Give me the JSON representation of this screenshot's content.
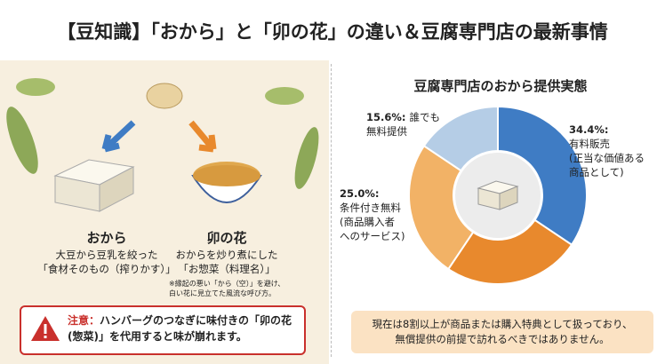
{
  "title": "【豆知識】「おから」と「卯の花」の違い＆豆腐専門店の最新事情",
  "left": {
    "okara": {
      "name": "おから",
      "desc": "大豆から豆乳を絞った\n「食材そのもの（搾りかす）」"
    },
    "unohana": {
      "name": "卯の花",
      "desc": "おからを炒り煮にした\n「お惣菜（料理名）」",
      "note": "※縁起の悪い「から（空）」を避け、\n白い花に見立てた風流な呼び方。"
    },
    "warning": {
      "label": "注意：",
      "text": "ハンバーグのつなぎに味付きの「卯の花(惣菜)」を代用すると味が崩れます。"
    }
  },
  "chart_data": {
    "type": "donut",
    "title": "豆腐専門店のおから提供実態",
    "categories": [
      "有料販売\n(正当な価値ある\n商品として)",
      null,
      "条件付き無料\n(商品購入者\nへのサービス)",
      "誰でも\n無料提供"
    ],
    "values": [
      34.4,
      25.0,
      25.0,
      15.6
    ],
    "value_labels": [
      "34.4%:",
      null,
      "25.0%:",
      "15.6%:"
    ],
    "colors": [
      "#3f7cc4",
      "#e8892d",
      "#f2b266",
      "#b5cde6"
    ],
    "note": "現在は8割以上が商品または購入特典として扱っており、\n無償提供の前提で訪れるべきではありません。"
  }
}
